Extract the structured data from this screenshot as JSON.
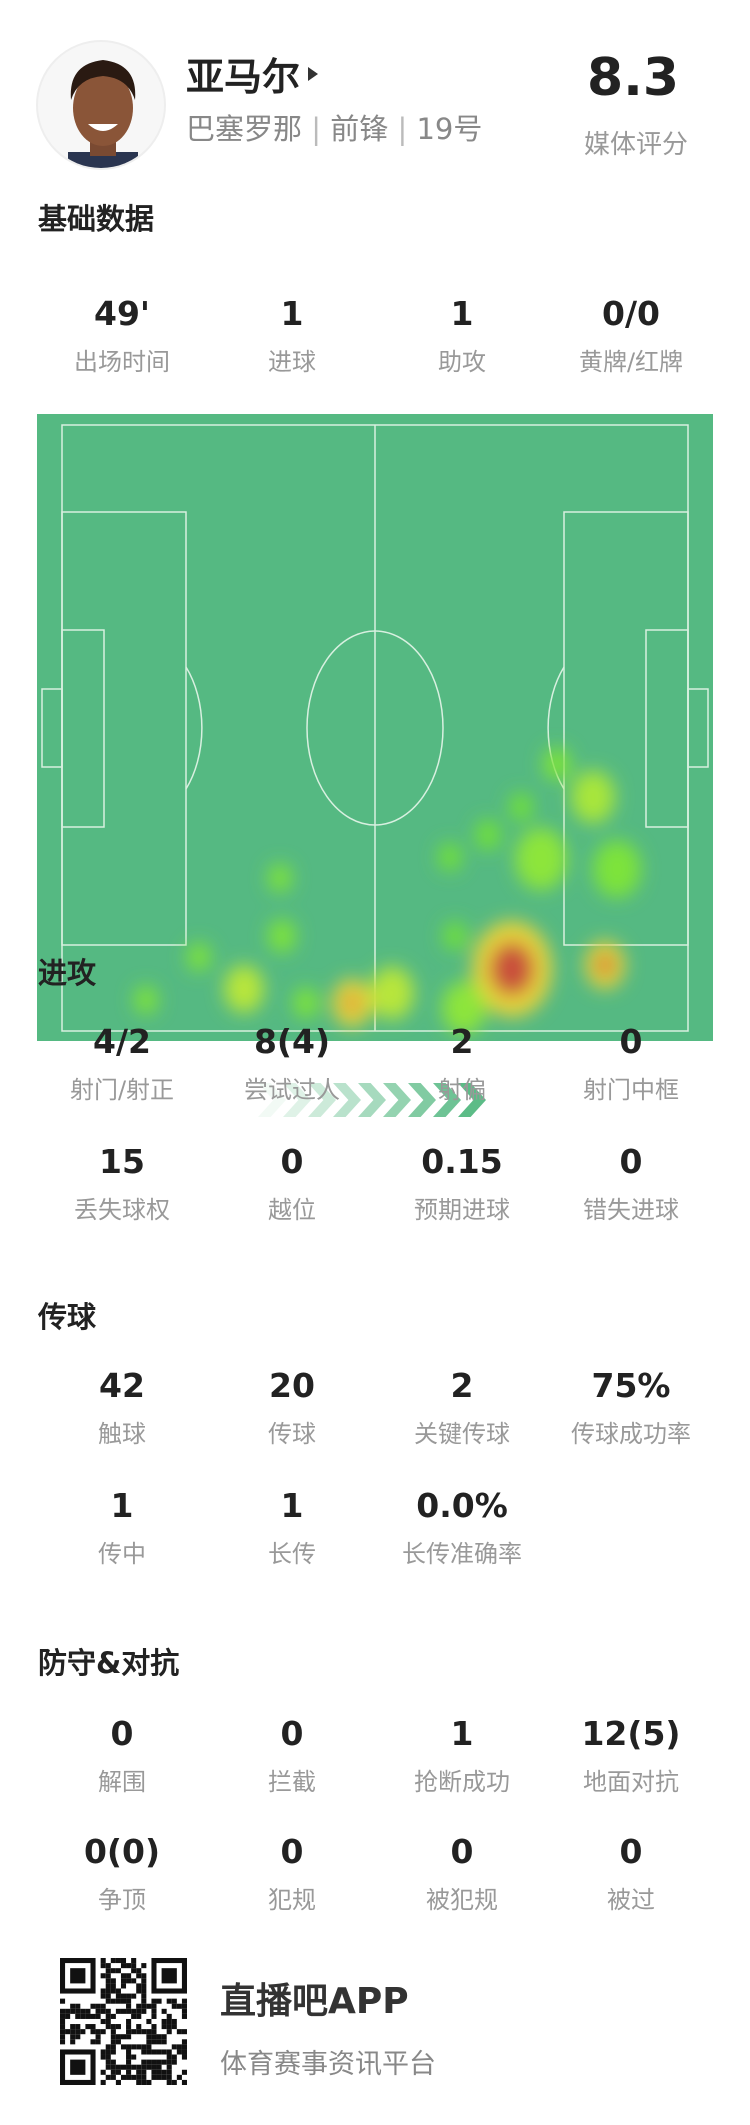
{
  "player": {
    "name": "亚马尔",
    "team": "巴塞罗那",
    "position": "前锋",
    "number": "19号",
    "rating": "8.3",
    "rating_label": "媒体评分"
  },
  "sections": {
    "basic": {
      "title": "基础数据",
      "stats": [
        {
          "v": "49'",
          "l": "出场时间"
        },
        {
          "v": "1",
          "l": "进球"
        },
        {
          "v": "1",
          "l": "助攻"
        },
        {
          "v": "0/0",
          "l": "黄牌/红牌"
        }
      ]
    },
    "attack": {
      "title": "进攻",
      "stats": [
        {
          "v": "4/2",
          "l": "射门/射正"
        },
        {
          "v": "8(4)",
          "l": "尝试过人"
        },
        {
          "v": "2",
          "l": "射偏"
        },
        {
          "v": "0",
          "l": "射门中框"
        },
        {
          "v": "15",
          "l": "丢失球权"
        },
        {
          "v": "0",
          "l": "越位"
        },
        {
          "v": "0.15",
          "l": "预期进球"
        },
        {
          "v": "0",
          "l": "错失进球"
        }
      ]
    },
    "passing": {
      "title": "传球",
      "stats": [
        {
          "v": "42",
          "l": "触球"
        },
        {
          "v": "20",
          "l": "传球"
        },
        {
          "v": "2",
          "l": "关键传球"
        },
        {
          "v": "75%",
          "l": "传球成功率"
        },
        {
          "v": "1",
          "l": "传中"
        },
        {
          "v": "1",
          "l": "长传"
        },
        {
          "v": "0.0%",
          "l": "长传准确率"
        }
      ]
    },
    "defense": {
      "title": "防守&对抗",
      "stats": [
        {
          "v": "0",
          "l": "解围"
        },
        {
          "v": "0",
          "l": "拦截"
        },
        {
          "v": "1",
          "l": "抢断成功"
        },
        {
          "v": "12(5)",
          "l": "地面对抗"
        },
        {
          "v": "0(0)",
          "l": "争顶"
        },
        {
          "v": "0",
          "l": "犯规"
        },
        {
          "v": "0",
          "l": "被犯规"
        },
        {
          "v": "0",
          "l": "被过"
        }
      ]
    }
  },
  "heatmap": {
    "attack_direction": "right",
    "pitch_color": "#55b982"
  },
  "footer": {
    "app_name": "直播吧APP",
    "slogan": "体育赛事资讯平台",
    "qr_icon": "qr-code-icon"
  }
}
